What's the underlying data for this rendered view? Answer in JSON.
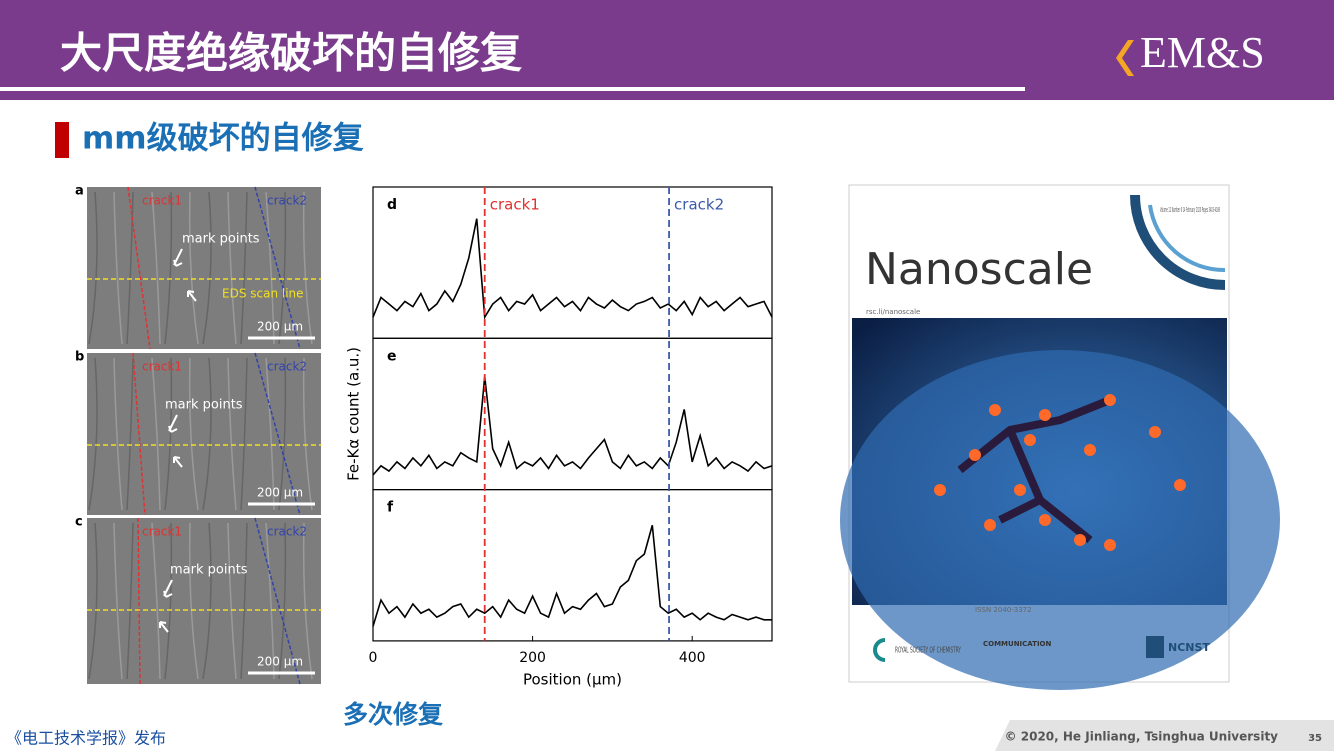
{
  "header": {
    "title": "大尺度绝缘破坏的自修复",
    "logo": "EM&S"
  },
  "subtitle": "mm级破坏的自修复",
  "images": [
    {
      "label": "a",
      "crack1": "crack1",
      "crack2": "crack2",
      "marks": "mark points",
      "scan": "EDS scan line",
      "scale": "200 μm"
    },
    {
      "label": "b",
      "crack1": "crack1",
      "crack2": "crack2",
      "marks": "mark points",
      "scale": "200 μm"
    },
    {
      "label": "c",
      "crack1": "crack1",
      "crack2": "crack2",
      "marks": "mark points",
      "scale": "200 μm"
    }
  ],
  "chart_data": {
    "type": "line",
    "ylabel": "Fe-Kα count (a.u.)",
    "xlabel": "Position (μm)",
    "xlim": [
      0,
      500
    ],
    "xticks": [
      0,
      200,
      400
    ],
    "ylim": [
      0,
      1
    ],
    "x": [
      0,
      10,
      20,
      30,
      40,
      50,
      60,
      70,
      80,
      90,
      100,
      110,
      120,
      130,
      140,
      150,
      160,
      170,
      180,
      190,
      200,
      210,
      220,
      230,
      240,
      250,
      260,
      270,
      280,
      290,
      300,
      310,
      320,
      330,
      340,
      350,
      360,
      370,
      380,
      390,
      400,
      410,
      420,
      430,
      440,
      450,
      460,
      470,
      480,
      490,
      500
    ],
    "annotations": [
      {
        "text": "crack1",
        "x": 140,
        "color": "#e0312f"
      },
      {
        "text": "crack2",
        "x": 371,
        "color": "#3b5ba8"
      }
    ],
    "panels": [
      {
        "label": "d",
        "color": "#000000",
        "values": [
          0.1,
          0.25,
          0.2,
          0.15,
          0.22,
          0.18,
          0.28,
          0.15,
          0.2,
          0.3,
          0.22,
          0.35,
          0.55,
          0.85,
          0.1,
          0.2,
          0.25,
          0.15,
          0.22,
          0.2,
          0.27,
          0.15,
          0.2,
          0.25,
          0.18,
          0.22,
          0.15,
          0.25,
          0.2,
          0.17,
          0.23,
          0.18,
          0.15,
          0.2,
          0.22,
          0.25,
          0.17,
          0.2,
          0.15,
          0.22,
          0.12,
          0.25,
          0.18,
          0.22,
          0.15,
          0.2,
          0.25,
          0.18,
          0.2,
          0.22,
          0.1
        ]
      },
      {
        "label": "e",
        "color": "#000000",
        "values": [
          0.05,
          0.12,
          0.08,
          0.15,
          0.1,
          0.18,
          0.12,
          0.2,
          0.1,
          0.15,
          0.12,
          0.22,
          0.18,
          0.15,
          0.8,
          0.25,
          0.12,
          0.3,
          0.1,
          0.15,
          0.12,
          0.18,
          0.1,
          0.2,
          0.12,
          0.15,
          0.1,
          0.18,
          0.25,
          0.32,
          0.15,
          0.1,
          0.2,
          0.12,
          0.15,
          0.1,
          0.18,
          0.12,
          0.3,
          0.55,
          0.15,
          0.35,
          0.12,
          0.18,
          0.1,
          0.15,
          0.12,
          0.08,
          0.15,
          0.1,
          0.12
        ]
      },
      {
        "label": "f",
        "color": "#000000",
        "values": [
          0.05,
          0.25,
          0.15,
          0.2,
          0.12,
          0.22,
          0.15,
          0.18,
          0.12,
          0.15,
          0.2,
          0.22,
          0.12,
          0.18,
          0.15,
          0.2,
          0.12,
          0.25,
          0.18,
          0.15,
          0.28,
          0.15,
          0.12,
          0.3,
          0.15,
          0.2,
          0.18,
          0.25,
          0.3,
          0.2,
          0.22,
          0.35,
          0.4,
          0.55,
          0.6,
          0.82,
          0.2,
          0.15,
          0.18,
          0.12,
          0.15,
          0.1,
          0.15,
          0.12,
          0.1,
          0.14,
          0.12,
          0.1,
          0.12,
          0.1,
          0.1
        ]
      }
    ]
  },
  "cover": {
    "title": "Nanoscale",
    "issue": "Volume 12 Number 6 14 February 2020 Pages 3403-4168",
    "url": "rsc.li/nanoscale",
    "issn": "ISSN 2040-3372",
    "rsc": "ROYAL SOCIETY OF CHEMISTRY",
    "type": "COMMUNICATION",
    "ncnst": "NCNST"
  },
  "caption": "多次修复",
  "source": "《电工技术学报》发布",
  "footer": {
    "copyright": "© 2020, He Jinliang, Tsinghua University",
    "page": "35"
  }
}
